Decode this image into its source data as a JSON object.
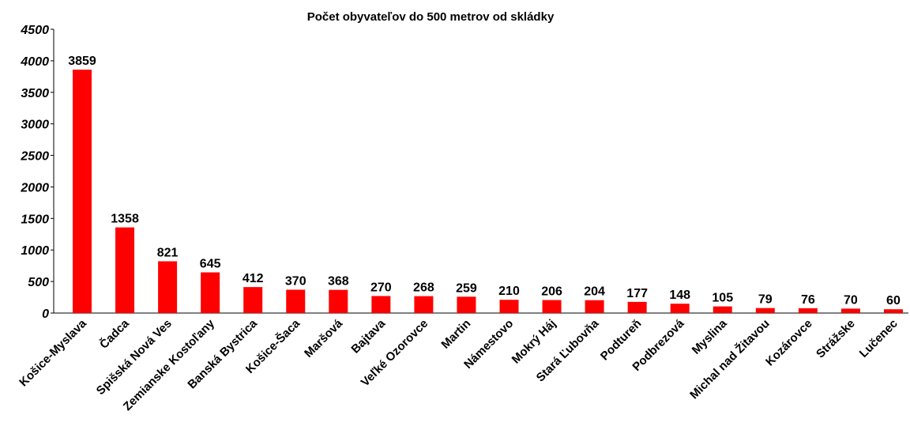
{
  "chart_data": {
    "type": "bar",
    "title": "Počet obyvateľov do 500 metrov od skládky",
    "categories": [
      "Košice-Myslava",
      "Čadca",
      "Spišská Nová Ves",
      "Zemianske Kostoľany",
      "Banská Bystrica",
      "Košice-Šaca",
      "Maršová",
      "Bajtava",
      "Veľké Ozorovce",
      "Martin",
      "Námestovo",
      "Mokrý Háj",
      "Stará Ľubovňa",
      "Podtureň",
      "Podbrezová",
      "Myslina",
      "Michal nad Žitavou",
      "Kozárovce",
      "Strážske",
      "Lučenec"
    ],
    "values": [
      3859,
      1358,
      821,
      645,
      412,
      370,
      368,
      270,
      268,
      259,
      210,
      206,
      204,
      177,
      148,
      105,
      79,
      76,
      70,
      60
    ],
    "color": "#ff0000",
    "ylim": [
      0,
      4500
    ],
    "yticks": [
      0,
      500,
      1000,
      1500,
      2000,
      2500,
      3000,
      3500,
      4000,
      4500
    ],
    "grid": false
  }
}
